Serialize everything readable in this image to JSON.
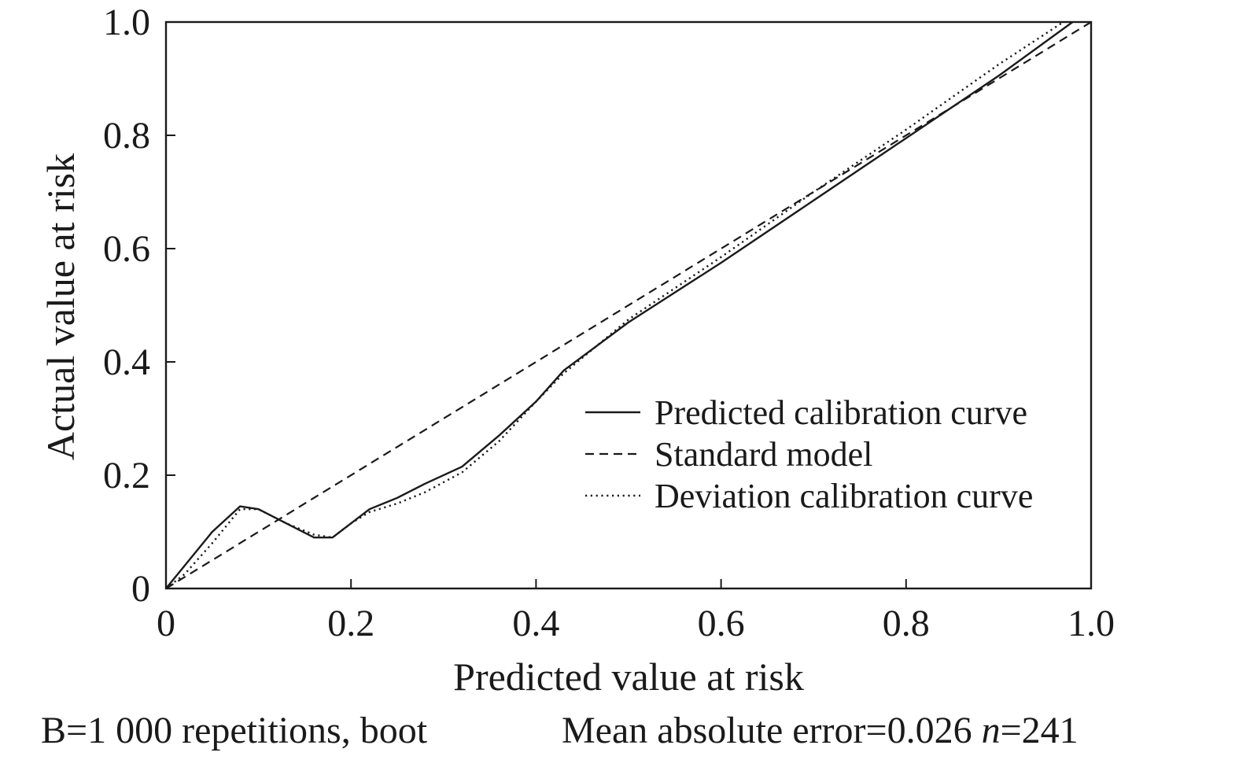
{
  "chart_data": {
    "type": "line",
    "title": "",
    "xlabel": "Predicted value at risk",
    "ylabel": "Actual value at risk",
    "xlim": [
      0,
      1.0
    ],
    "ylim": [
      0,
      1.0
    ],
    "xticks": [
      {
        "value": 0,
        "label": "0"
      },
      {
        "value": 0.2,
        "label": "0.2"
      },
      {
        "value": 0.4,
        "label": "0.4"
      },
      {
        "value": 0.6,
        "label": "0.6"
      },
      {
        "value": 0.8,
        "label": "0.8"
      },
      {
        "value": 1.0,
        "label": "1.0"
      }
    ],
    "yticks": [
      {
        "value": 0,
        "label": "0"
      },
      {
        "value": 0.2,
        "label": "0.2"
      },
      {
        "value": 0.4,
        "label": "0.4"
      },
      {
        "value": 0.6,
        "label": "0.6"
      },
      {
        "value": 0.8,
        "label": "0.8"
      },
      {
        "value": 1.0,
        "label": "1.0"
      }
    ],
    "grid": false,
    "legend_position": "bottom-right",
    "series": [
      {
        "name": "Predicted calibration curve",
        "style": "solid",
        "x": [
          0,
          0.02,
          0.05,
          0.08,
          0.1,
          0.13,
          0.16,
          0.18,
          0.2,
          0.22,
          0.25,
          0.28,
          0.32,
          0.36,
          0.4,
          0.43,
          0.5,
          0.6,
          0.7,
          0.8,
          0.9,
          0.98
        ],
        "y": [
          0,
          0.04,
          0.1,
          0.145,
          0.14,
          0.115,
          0.09,
          0.09,
          0.115,
          0.14,
          0.16,
          0.185,
          0.215,
          0.27,
          0.33,
          0.385,
          0.47,
          0.575,
          0.685,
          0.795,
          0.905,
          1.0
        ]
      },
      {
        "name": "Standard model",
        "style": "dashed",
        "x": [
          0,
          1.0
        ],
        "y": [
          0,
          1.0
        ]
      },
      {
        "name": "Deviation calibration curve",
        "style": "dotted",
        "x": [
          0,
          0.02,
          0.05,
          0.08,
          0.1,
          0.13,
          0.16,
          0.18,
          0.2,
          0.22,
          0.25,
          0.28,
          0.32,
          0.36,
          0.4,
          0.43,
          0.5,
          0.6,
          0.7,
          0.8,
          0.9,
          0.97
        ],
        "y": [
          0,
          0.025,
          0.08,
          0.14,
          0.14,
          0.115,
          0.095,
          0.09,
          0.115,
          0.135,
          0.15,
          0.17,
          0.205,
          0.26,
          0.33,
          0.38,
          0.475,
          0.585,
          0.7,
          0.81,
          0.925,
          1.0
        ]
      }
    ],
    "footnote_left": "B=1 000 repetitions, boot",
    "footnote_right_prefix": "Mean absolute error=0.026 ",
    "footnote_right_italic": "n",
    "footnote_right_suffix": "=241"
  }
}
